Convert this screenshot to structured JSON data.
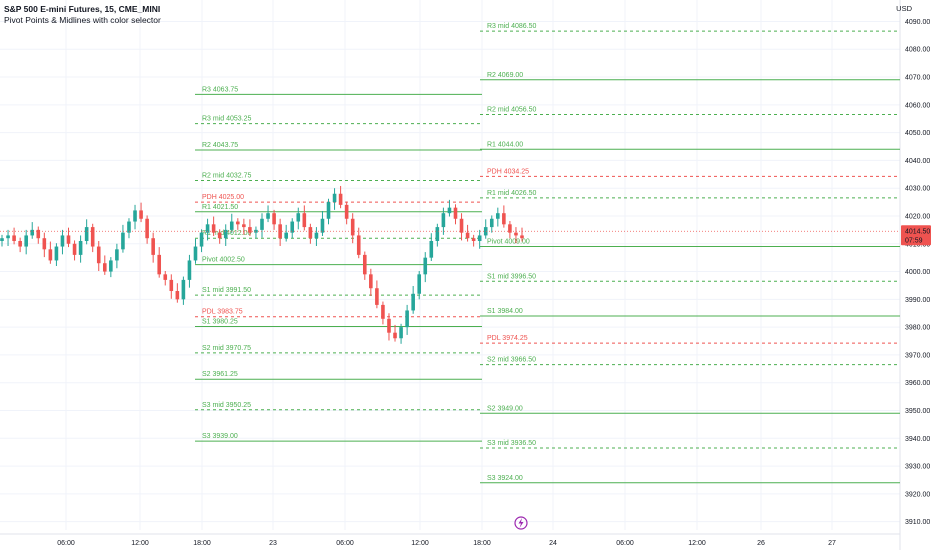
{
  "header": {
    "title": "S&P 500 E-mini Futures, 15, CME_MINI",
    "indicator": "Pivot Points & Midlines with color selector"
  },
  "price_axis": {
    "currency": "USD",
    "ticks": [
      "4090.00",
      "4080.00",
      "4070.00",
      "4060.00",
      "4050.00",
      "4040.00",
      "4030.00",
      "4020.00",
      "4010.00",
      "4000.00",
      "3990.00",
      "3980.00",
      "3970.00",
      "3960.00",
      "3950.00",
      "3940.00",
      "3930.00",
      "3920.00",
      "3910.00"
    ],
    "last_price": "4014.50",
    "countdown": "07:59"
  },
  "time_axis": {
    "labels": [
      "06:00",
      "12:00",
      "18:00",
      "23",
      "06:00",
      "12:00",
      "18:00",
      "24",
      "06:00",
      "12:00",
      "26",
      "27"
    ]
  },
  "colors": {
    "up": "#26a69a",
    "down": "#ef5350",
    "resistance_support": "#4caf50",
    "pdh_pdl": "#ef5350",
    "background": "#ffffff",
    "grid": "#f0f3fa"
  },
  "chart_data": {
    "type": "candlestick",
    "symbol": "S&P 500 E-mini Futures",
    "interval": "15",
    "exchange": "CME_MINI",
    "ylim": [
      3907,
      4097
    ],
    "last_price": 4014.5,
    "close_path": [
      4012,
      4013,
      4011,
      4009,
      4013,
      4015,
      4012,
      4008,
      4004,
      4009,
      4013,
      4010,
      4006,
      4011,
      4016,
      4009,
      4003,
      4000,
      4004,
      4008,
      4014,
      4018,
      4022,
      4019,
      4012,
      4006,
      3999,
      3997,
      3993,
      3990,
      3997,
      4004,
      4009,
      4014,
      4017,
      4014,
      4012,
      4015,
      4018,
      4017,
      4016,
      4014,
      4015,
      4019,
      4021,
      4017,
      4012,
      4014,
      4018,
      4021,
      4016,
      4012,
      4014,
      4019,
      4025,
      4028,
      4024,
      4019,
      4013,
      4006,
      3999,
      3994,
      3988,
      3983,
      3978,
      3976,
      3980,
      3986,
      3992,
      3999,
      4005,
      4011,
      4016,
      4021,
      4023,
      4019,
      4014,
      4012,
      4011,
      4013,
      4016,
      4019,
      4021,
      4017,
      4014,
      4013,
      4012
    ],
    "panels": [
      {
        "name": "previous-session-pivots",
        "levels": [
          {
            "label": "R3",
            "value": 4063.75,
            "style": "solid",
            "color": "green"
          },
          {
            "label": "R3 mid",
            "value": 4053.25,
            "style": "dashed",
            "color": "green"
          },
          {
            "label": "R2",
            "value": 4043.75,
            "style": "solid",
            "color": "green"
          },
          {
            "label": "R2 mid",
            "value": 4032.75,
            "style": "dashed",
            "color": "green"
          },
          {
            "label": "PDH",
            "value": 4025.0,
            "style": "dashed",
            "color": "red"
          },
          {
            "label": "R1",
            "value": 4021.5,
            "style": "solid",
            "color": "green"
          },
          {
            "label": "R1 mid",
            "value": 4012.0,
            "style": "dashed",
            "color": "green"
          },
          {
            "label": "Pivot",
            "value": 4002.5,
            "style": "solid",
            "color": "green"
          },
          {
            "label": "S1 mid",
            "value": 3991.5,
            "style": "dashed",
            "color": "green"
          },
          {
            "label": "PDL",
            "value": 3983.75,
            "style": "dashed",
            "color": "red"
          },
          {
            "label": "S1",
            "value": 3980.25,
            "style": "solid",
            "color": "green"
          },
          {
            "label": "S2 mid",
            "value": 3970.75,
            "style": "dashed",
            "color": "green"
          },
          {
            "label": "S2",
            "value": 3961.25,
            "style": "solid",
            "color": "green"
          },
          {
            "label": "S3 mid",
            "value": 3950.25,
            "style": "dashed",
            "color": "green"
          },
          {
            "label": "S3",
            "value": 3939.0,
            "style": "solid",
            "color": "green"
          }
        ]
      },
      {
        "name": "current-session-pivots",
        "levels": [
          {
            "label": "R3 mid",
            "value": 4086.5,
            "style": "dashed",
            "color": "green"
          },
          {
            "label": "R2",
            "value": 4069.0,
            "style": "solid",
            "color": "green"
          },
          {
            "label": "R2 mid",
            "value": 4056.5,
            "style": "dashed",
            "color": "green"
          },
          {
            "label": "R1",
            "value": 4044.0,
            "style": "solid",
            "color": "green"
          },
          {
            "label": "PDH",
            "value": 4034.25,
            "style": "dashed",
            "color": "red"
          },
          {
            "label": "R1 mid",
            "value": 4026.5,
            "style": "dashed",
            "color": "green"
          },
          {
            "label": "Pivot",
            "value": 4009.0,
            "style": "solid",
            "color": "green"
          },
          {
            "label": "S1 mid",
            "value": 3996.5,
            "style": "dashed",
            "color": "green"
          },
          {
            "label": "S1",
            "value": 3984.0,
            "style": "solid",
            "color": "green"
          },
          {
            "label": "PDL",
            "value": 3974.25,
            "style": "dashed",
            "color": "red"
          },
          {
            "label": "S2 mid",
            "value": 3966.5,
            "style": "dashed",
            "color": "green"
          },
          {
            "label": "S2",
            "value": 3949.0,
            "style": "solid",
            "color": "green"
          },
          {
            "label": "S3 mid",
            "value": 3936.5,
            "style": "dashed",
            "color": "green"
          },
          {
            "label": "S3",
            "value": 3924.0,
            "style": "solid",
            "color": "green"
          }
        ]
      }
    ]
  }
}
